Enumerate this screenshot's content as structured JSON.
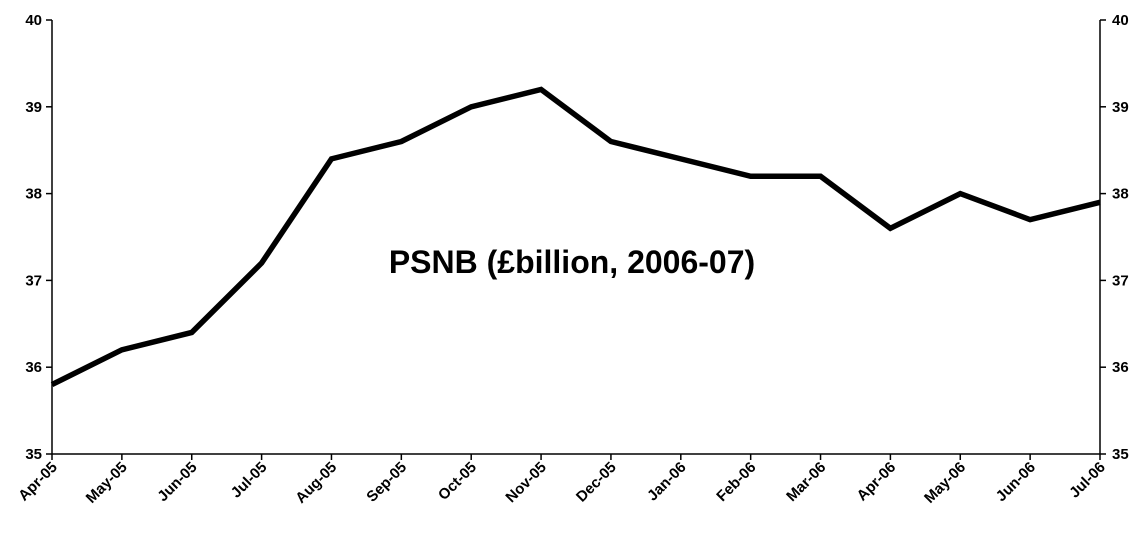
{
  "chart_data": {
    "type": "line",
    "categories": [
      "Apr-05",
      "May-05",
      "Jun-05",
      "Jul-05",
      "Aug-05",
      "Sep-05",
      "Oct-05",
      "Nov-05",
      "Dec-05",
      "Jan-06",
      "Feb-06",
      "Mar-06",
      "Apr-06",
      "May-06",
      "Jun-06",
      "Jul-06"
    ],
    "series": [
      {
        "values": [
          35.8,
          36.2,
          36.4,
          37.2,
          38.4,
          38.6,
          39.0,
          39.2,
          38.6,
          38.4,
          38.2,
          38.2,
          37.6,
          38.0,
          37.7,
          37.9
        ]
      }
    ],
    "annotation": "PSNB (£billion, 2006-07)",
    "ylim": [
      35,
      40
    ],
    "yticks": [
      "35",
      "36",
      "37",
      "38",
      "39",
      "40"
    ],
    "y_axis_right": true,
    "grid": false,
    "legend": "none",
    "line_color": "#000000"
  }
}
